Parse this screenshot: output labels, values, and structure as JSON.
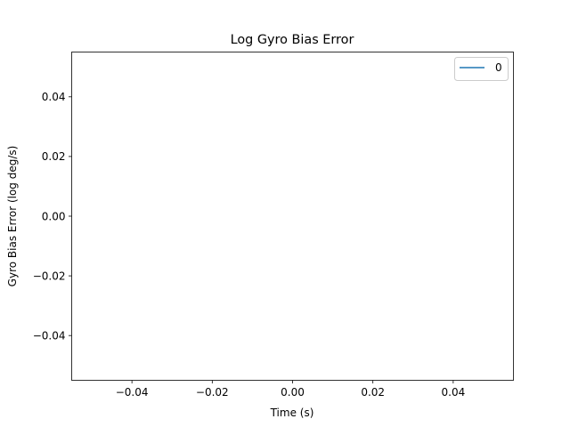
{
  "chart_data": {
    "type": "line",
    "title": "Log Gyro Bias Error",
    "xlabel": "Time (s)",
    "ylabel": "Gyro Bias Error (log deg/s)",
    "xlim": [
      -0.055,
      0.055
    ],
    "ylim": [
      -0.055,
      0.055
    ],
    "x_ticks": [
      -0.04,
      -0.02,
      0.0,
      0.02,
      0.04
    ],
    "x_tick_labels": [
      "−0.04",
      "−0.02",
      "0.00",
      "0.02",
      "0.04"
    ],
    "y_ticks": [
      0.04,
      0.02,
      0.0,
      -0.02,
      -0.04
    ],
    "y_tick_labels": [
      "0.04",
      "0.02",
      "0.00",
      "−0.02",
      "−0.04"
    ],
    "grid": false,
    "legend": {
      "position": "top-right",
      "entries": [
        "0"
      ]
    },
    "series": [
      {
        "name": "0",
        "color": "#1f77b4",
        "x": [],
        "y": []
      }
    ]
  }
}
